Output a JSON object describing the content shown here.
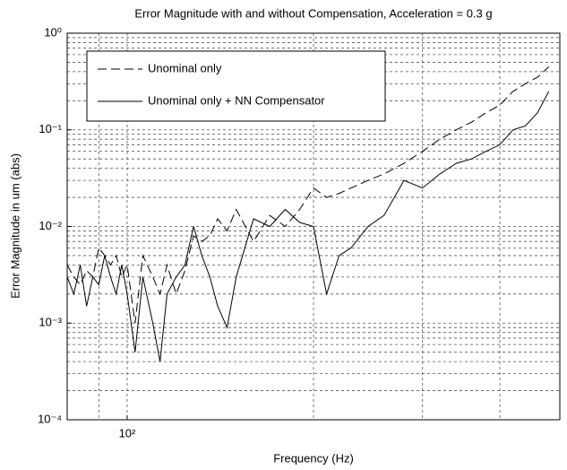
{
  "chart_data": {
    "type": "line",
    "title": "Error Magnitude with and without Compensation, Acceleration = 0.3 g",
    "xlabel": "Frequency  (Hz)",
    "ylabel": "Error Magnitude in um (abs)",
    "x": [
      80,
      82,
      84,
      86,
      88,
      90,
      92,
      94,
      96,
      98,
      100,
      103,
      106,
      110,
      113,
      116,
      120,
      124,
      128,
      132,
      136,
      140,
      145,
      150,
      160,
      170,
      180,
      190,
      200,
      210,
      220,
      230,
      245,
      260,
      280,
      300,
      320,
      340,
      360,
      380,
      400,
      420,
      440,
      460,
      480
    ],
    "series": [
      {
        "name": "Unominal only",
        "color": "#000000",
        "dash": true,
        "values": [
          0.004,
          0.003,
          0.0025,
          0.0035,
          0.003,
          0.006,
          0.005,
          0.004,
          0.005,
          0.003,
          0.004,
          0.001,
          0.005,
          0.003,
          0.002,
          0.004,
          0.002,
          0.0035,
          0.008,
          0.007,
          0.008,
          0.012,
          0.009,
          0.015,
          0.007,
          0.013,
          0.01,
          0.015,
          0.025,
          0.02,
          0.022,
          0.025,
          0.03,
          0.035,
          0.045,
          0.06,
          0.08,
          0.1,
          0.12,
          0.15,
          0.18,
          0.25,
          0.3,
          0.35,
          0.45
        ]
      },
      {
        "name": "Unominal only + NN Compensator",
        "color": "#000000",
        "dash": false,
        "values": [
          0.003,
          0.002,
          0.004,
          0.0015,
          0.003,
          0.0025,
          0.005,
          0.003,
          0.002,
          0.004,
          0.002,
          0.0005,
          0.003,
          0.001,
          0.0004,
          0.002,
          0.003,
          0.004,
          0.01,
          0.005,
          0.003,
          0.0015,
          0.0009,
          0.003,
          0.012,
          0.01,
          0.015,
          0.011,
          0.01,
          0.002,
          0.005,
          0.006,
          0.01,
          0.013,
          0.03,
          0.025,
          0.035,
          0.045,
          0.05,
          0.06,
          0.07,
          0.1,
          0.11,
          0.15,
          0.25
        ]
      }
    ],
    "xlim": [
      80,
      500
    ],
    "ylim": [
      0.0001,
      1
    ],
    "xscale": "log",
    "yscale": "log",
    "xticks": [
      {
        "value": 100,
        "label": "10²"
      }
    ],
    "xgrid": [
      90,
      100,
      200,
      300,
      400
    ],
    "yticks": [
      {
        "value": 0.0001,
        "label": "10⁻⁴"
      },
      {
        "value": 0.001,
        "label": "10⁻³"
      },
      {
        "value": 0.01,
        "label": "10⁻²"
      },
      {
        "value": 0.1,
        "label": "10⁻¹"
      },
      {
        "value": 1,
        "label": "10⁰"
      }
    ],
    "yminor": [
      0.0002,
      0.0003,
      0.0004,
      0.0005,
      0.0006,
      0.0007,
      0.0008,
      0.0009,
      0.002,
      0.003,
      0.004,
      0.005,
      0.006,
      0.007,
      0.008,
      0.009,
      0.02,
      0.03,
      0.04,
      0.05,
      0.06,
      0.07,
      0.08,
      0.09,
      0.2,
      0.3,
      0.4,
      0.5,
      0.6,
      0.7,
      0.8,
      0.9
    ],
    "grid": true,
    "legend": "upper left"
  }
}
